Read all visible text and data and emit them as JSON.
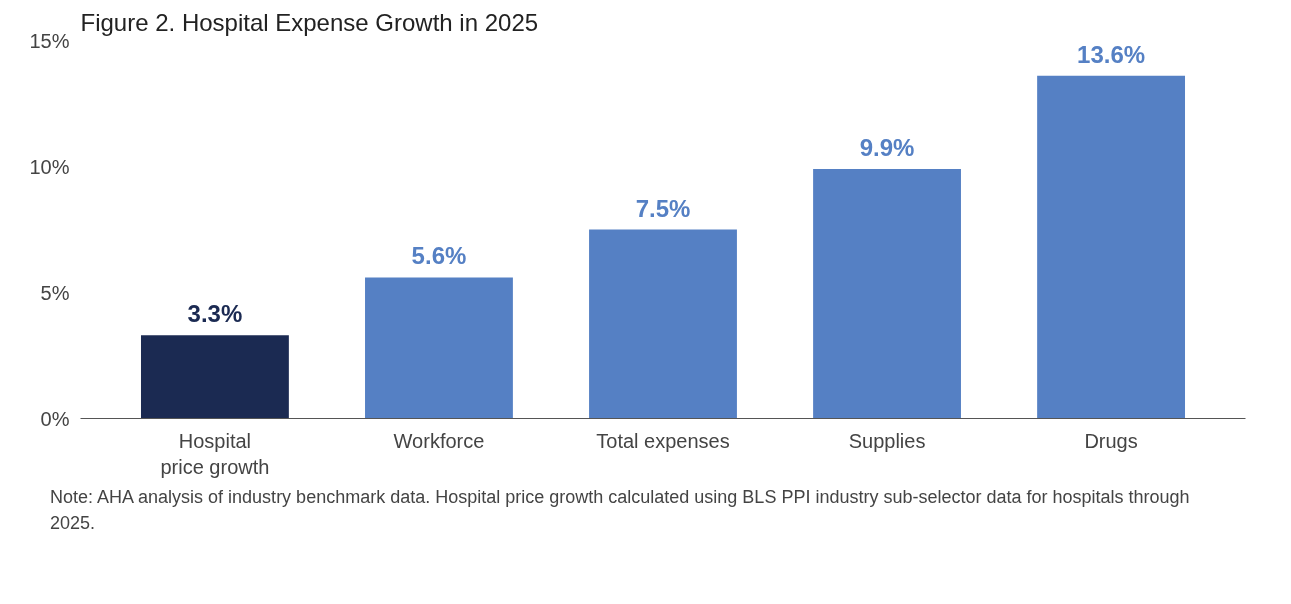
{
  "chart_data": {
    "type": "bar",
    "title": "Figure 2. Hospital Expense Growth in 2025",
    "categories": [
      "Hospital\nprice growth",
      "Workforce",
      "Total expenses",
      "Supplies",
      "Drugs"
    ],
    "values": [
      3.3,
      5.6,
      7.5,
      9.9,
      13.6
    ],
    "colors": [
      "#1b2a52",
      "#5580c4",
      "#5580c4",
      "#5580c4",
      "#5580c4"
    ],
    "value_labels": [
      "3.3%",
      "5.6%",
      "7.5%",
      "9.9%",
      "13.6%"
    ],
    "ylim": [
      0,
      15
    ],
    "yticks": [
      {
        "value": 0,
        "label": "0%"
      },
      {
        "value": 5,
        "label": "5%"
      },
      {
        "value": 10,
        "label": "10%"
      },
      {
        "value": 15,
        "label": "15%"
      }
    ],
    "grid": false,
    "annotations": [
      "Note: AHA analysis of industry benchmark data. Hospital price growth calculated using BLS PPI industry sub-selector data for hospitals through 2025."
    ]
  }
}
